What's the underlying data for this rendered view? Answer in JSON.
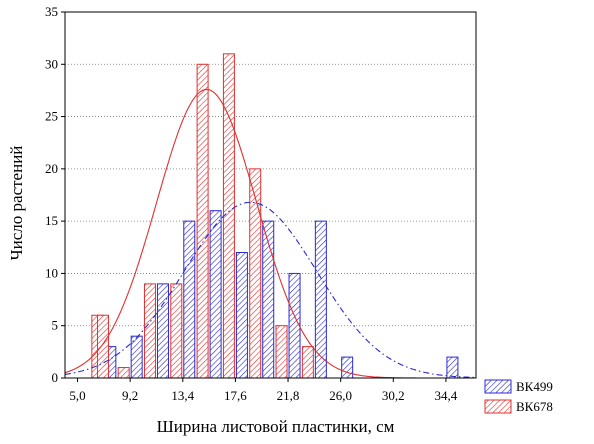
{
  "chart_data": {
    "type": "bar",
    "title": "",
    "xlabel": "Ширина листовой пластинки, см",
    "ylabel": "Число растений",
    "x_tick_labels": [
      "5,0",
      "9,2",
      "13,4",
      "17,6",
      "21,8",
      "26,0",
      "30,2",
      "34,4"
    ],
    "x_ticks": [
      5.0,
      9.2,
      13.4,
      17.6,
      21.8,
      26.0,
      30.2,
      34.4
    ],
    "xlim": [
      4.0,
      36.8
    ],
    "ylim": [
      0,
      35
    ],
    "y_ticks": [
      0,
      5,
      10,
      15,
      20,
      25,
      30,
      35
    ],
    "bin_width": 2.1,
    "bin_centers": [
      7.1,
      9.2,
      11.3,
      13.4,
      15.5,
      17.6,
      19.7,
      21.8,
      23.9,
      26.0,
      28.1,
      30.2,
      32.3,
      34.4
    ],
    "grid": "horizontal dotted",
    "legend_position": "bottom-right",
    "series": [
      {
        "name": "ВК499",
        "color": "#2a2ad0",
        "values": [
          3,
          4,
          9,
          15,
          16,
          12,
          15,
          10,
          15,
          2,
          0,
          0,
          0,
          2
        ],
        "fit_curve": {
          "style": "dash-dot",
          "mean": 18.8,
          "sd": 5.3,
          "peak": 16.8
        }
      },
      {
        "name": "ВК678",
        "color": "#e03030",
        "values": [
          6,
          1,
          9,
          9,
          30,
          31,
          20,
          5,
          3,
          0,
          0,
          0,
          0,
          0
        ],
        "fit_curve": {
          "style": "solid",
          "mean": 15.3,
          "sd": 4.0,
          "peak": 27.6
        }
      }
    ],
    "extra_bars": [
      {
        "series": "ВК678",
        "bin_center": 5.0,
        "value": 6
      }
    ]
  }
}
